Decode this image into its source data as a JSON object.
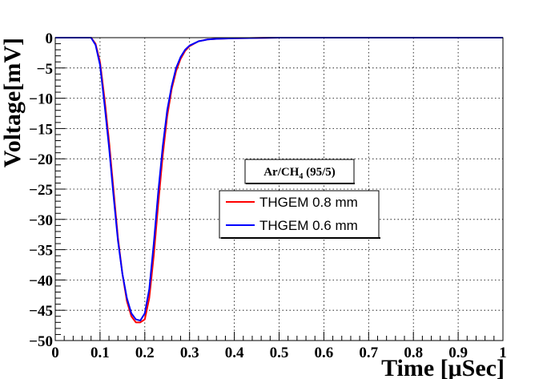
{
  "chart_data": {
    "type": "line",
    "title": "",
    "xlabel": "Time [μSec]",
    "ylabel": "Voltage[mV]",
    "xlim": [
      0,
      1
    ],
    "ylim": [
      -50,
      0
    ],
    "grid": true,
    "x_ticks": [
      0,
      0.1,
      0.2,
      0.3,
      0.4,
      0.5,
      0.6,
      0.7,
      0.8,
      0.9,
      1
    ],
    "x_tick_labels": [
      "0",
      "0.1",
      "0.2",
      "0.3",
      "0.4",
      "0.5",
      "0.6",
      "0.7",
      "0.8",
      "0.9",
      "1"
    ],
    "y_ticks": [
      0,
      -5,
      -10,
      -15,
      -20,
      -25,
      -30,
      -35,
      -40,
      -45,
      -50
    ],
    "y_tick_labels": [
      "0",
      "−5",
      "−10",
      "−15",
      "−20",
      "−25",
      "−30",
      "−35",
      "−40",
      "−45",
      "−50"
    ],
    "annotation": {
      "main": "Ar/CH",
      "sub": "4",
      "suffix": " (95/5)"
    },
    "legend_position": "center",
    "series": [
      {
        "name": "THGEM 0.8 mm",
        "color": "#ff0000",
        "x": [
          0,
          0.05,
          0.08,
          0.09,
          0.1,
          0.11,
          0.12,
          0.13,
          0.14,
          0.15,
          0.16,
          0.17,
          0.18,
          0.19,
          0.2,
          0.21,
          0.22,
          0.23,
          0.24,
          0.25,
          0.26,
          0.27,
          0.28,
          0.29,
          0.3,
          0.32,
          0.34,
          0.36,
          0.4,
          0.45,
          0.5,
          0.6,
          0.7,
          0.8,
          0.9,
          1.0
        ],
        "y": [
          0,
          0,
          0,
          -1,
          -4,
          -10,
          -17,
          -25,
          -33,
          -39,
          -43.5,
          -46,
          -47,
          -47,
          -46.5,
          -43,
          -36,
          -27.5,
          -19.5,
          -13,
          -8.5,
          -5.5,
          -3.5,
          -2.2,
          -1.4,
          -0.6,
          -0.3,
          -0.2,
          -0.1,
          -0.05,
          0,
          0,
          0,
          0,
          0,
          0
        ]
      },
      {
        "name": "THGEM 0.6 mm",
        "color": "#0000ff",
        "x": [
          0,
          0.05,
          0.08,
          0.09,
          0.1,
          0.11,
          0.12,
          0.13,
          0.14,
          0.15,
          0.16,
          0.17,
          0.18,
          0.19,
          0.2,
          0.21,
          0.22,
          0.23,
          0.24,
          0.25,
          0.26,
          0.27,
          0.28,
          0.29,
          0.3,
          0.32,
          0.34,
          0.36,
          0.4,
          0.45,
          0.5,
          0.6,
          0.7,
          0.8,
          0.9,
          1.0
        ],
        "y": [
          0,
          0,
          0,
          -1.2,
          -4.5,
          -11,
          -18,
          -26,
          -33.5,
          -39,
          -43,
          -45.5,
          -46.5,
          -46.7,
          -45.5,
          -41.5,
          -34,
          -25.5,
          -18,
          -12,
          -8,
          -5,
          -3.2,
          -2,
          -1.3,
          -0.6,
          -0.3,
          -0.2,
          -0.1,
          -0.05,
          0,
          0,
          0,
          0,
          0,
          0
        ]
      }
    ]
  }
}
